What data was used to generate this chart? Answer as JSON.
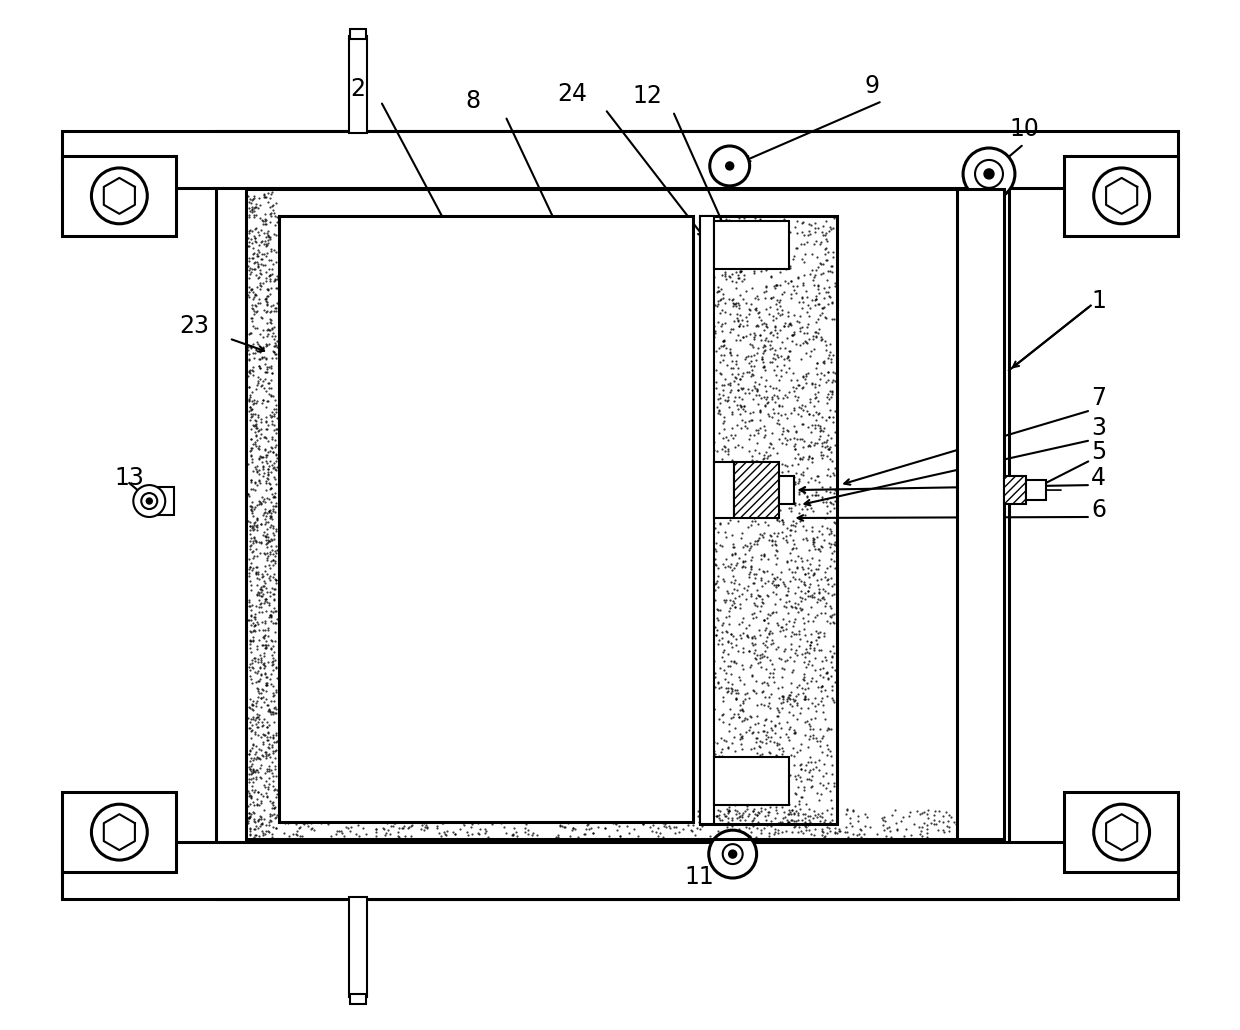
{
  "bg_color": "#ffffff",
  "line_color": "#000000",
  "lw": 1.5,
  "lw2": 2.2,
  "fig_w": 12.4,
  "fig_h": 10.3
}
